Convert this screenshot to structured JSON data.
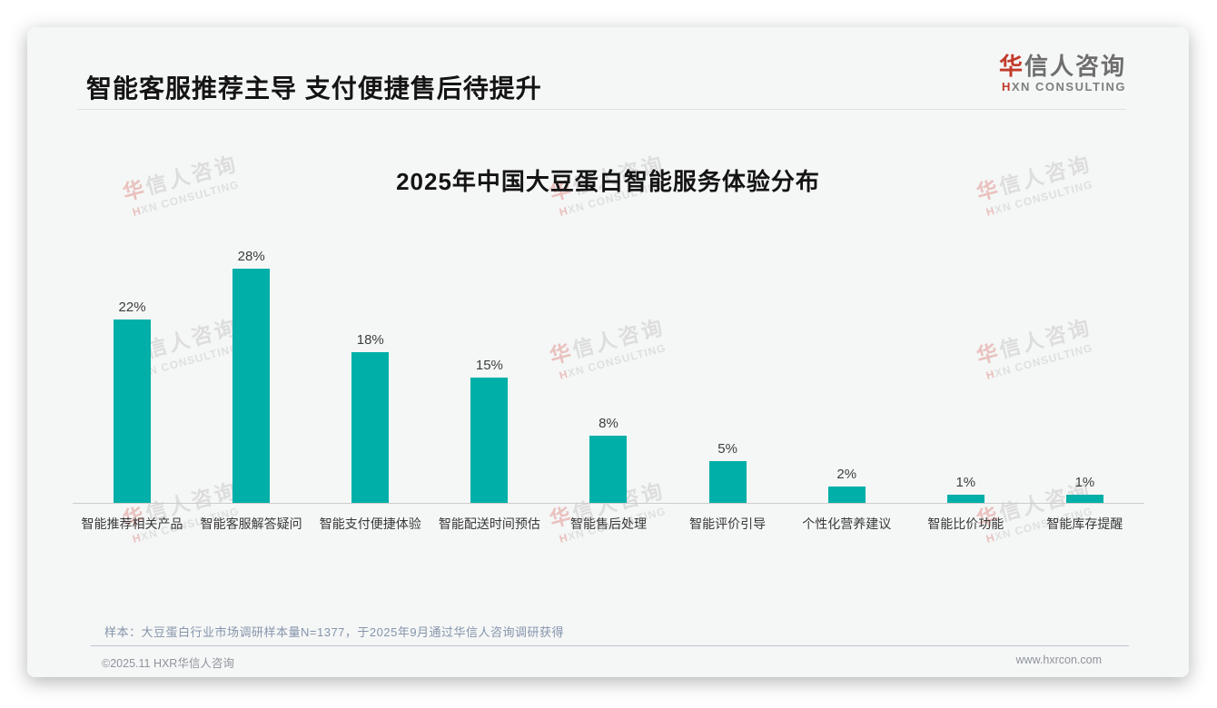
{
  "header": {
    "title": "智能客服推荐主导 支付便捷售后待提升",
    "logo": {
      "cn_first": "华",
      "cn_rest": "信人咨询",
      "en_first": "H",
      "en_rest": "XN CONSULTING",
      "accent_color": "#C23A2B"
    }
  },
  "chart_data": {
    "type": "bar",
    "title": "2025年中国大豆蛋白智能服务体验分布",
    "categories": [
      "智能推荐相关产品",
      "智能客服解答疑问",
      "智能支付便捷体验",
      "智能配送时间预估",
      "智能售后处理",
      "智能评价引导",
      "个性化营养建议",
      "智能比价功能",
      "智能库存提醒"
    ],
    "values": [
      22,
      28,
      18,
      15,
      8,
      5,
      2,
      1,
      1
    ],
    "value_labels": [
      "22%",
      "28%",
      "18%",
      "15%",
      "8%",
      "5%",
      "2%",
      "1%",
      "1%"
    ],
    "unit": "%",
    "bar_color": "#00AFA8",
    "ylim": [
      0,
      30
    ],
    "grid": false,
    "legend": false,
    "xlabel": "",
    "ylabel": ""
  },
  "watermark": {
    "cn_first": "华",
    "cn_rest": "信人咨询",
    "en_first": "H",
    "en_rest": "XN CONSULTING"
  },
  "footnote": "样本：大豆蛋白行业市场调研样本量N=1377，于2025年9月通过华信人咨询调研获得",
  "footer": {
    "left": "©2025.11 HXR华信人咨询",
    "right": "www.hxrcon.com"
  }
}
